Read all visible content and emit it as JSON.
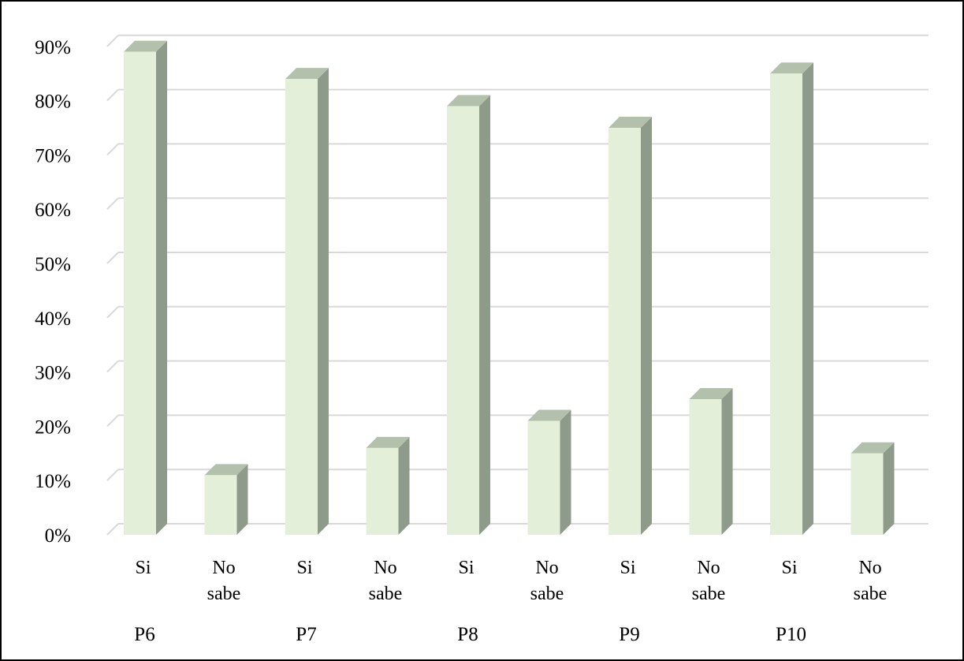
{
  "chart_data": {
    "type": "bar",
    "title": "",
    "xlabel": "",
    "ylabel": "",
    "ylim": [
      0,
      90
    ],
    "yticks": [
      "0%",
      "10%",
      "20%",
      "30%",
      "40%",
      "50%",
      "60%",
      "70%",
      "80%",
      "90%"
    ],
    "grid": true,
    "legend": "none",
    "style": "3d-column",
    "colors": {
      "front": "#e3efd9",
      "side": "#8f9b8a",
      "top": "#b3c1ac",
      "grid": "#d9d9d9"
    },
    "groups": [
      {
        "label": "P6",
        "categories": [
          {
            "label": [
              "Si"
            ],
            "value": 89
          },
          {
            "label": [
              "No",
              "sabe"
            ],
            "value": 11
          }
        ]
      },
      {
        "label": "P7",
        "categories": [
          {
            "label": [
              "Si"
            ],
            "value": 84
          },
          {
            "label": [
              "No",
              "sabe"
            ],
            "value": 16
          }
        ]
      },
      {
        "label": "P8",
        "categories": [
          {
            "label": [
              "Si"
            ],
            "value": 79
          },
          {
            "label": [
              "No",
              "sabe"
            ],
            "value": 21
          }
        ]
      },
      {
        "label": "P9",
        "categories": [
          {
            "label": [
              "Si"
            ],
            "value": 75
          },
          {
            "label": [
              "No",
              "sabe"
            ],
            "value": 25
          }
        ]
      },
      {
        "label": "P10",
        "categories": [
          {
            "label": [
              "Si"
            ],
            "value": 85
          },
          {
            "label": [
              "No",
              "sabe"
            ],
            "value": 15
          }
        ]
      }
    ]
  }
}
